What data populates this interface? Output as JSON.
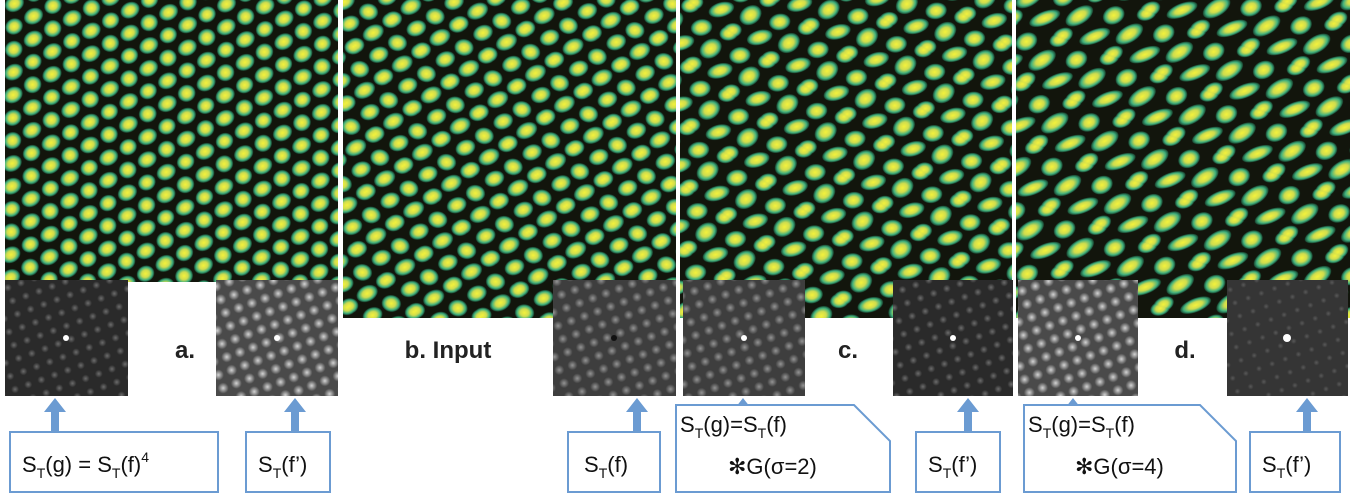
{
  "panels": [
    {
      "label": "a."
    },
    {
      "label": "b. Input"
    },
    {
      "label": "c."
    },
    {
      "label": "d."
    }
  ],
  "captions": [
    {
      "lines": [
        [
          {
            "text": "S"
          },
          {
            "sub": "T"
          },
          {
            "text": "(g) = S"
          },
          {
            "sub": "T"
          },
          {
            "text": "(f)"
          },
          {
            "sup": "4"
          }
        ]
      ]
    },
    {
      "lines": [
        [
          {
            "text": "S"
          },
          {
            "sub": "T"
          },
          {
            "text": "(f’)"
          }
        ]
      ]
    },
    {
      "lines": [
        [
          {
            "text": "S"
          },
          {
            "sub": "T"
          },
          {
            "text": "(f)"
          }
        ]
      ]
    },
    {
      "lines": [
        [
          {
            "text": "S"
          },
          {
            "sub": "T"
          },
          {
            "text": "(g)=S"
          },
          {
            "sub": "T"
          },
          {
            "text": "(f)"
          }
        ],
        [
          {
            "text": "✻G(σ=2)"
          }
        ]
      ]
    },
    {
      "lines": [
        [
          {
            "text": "S"
          },
          {
            "sub": "T"
          },
          {
            "text": "(f’)"
          }
        ]
      ]
    },
    {
      "lines": [
        [
          {
            "text": "S"
          },
          {
            "sub": "T"
          },
          {
            "text": "(g)=S"
          },
          {
            "sub": "T"
          },
          {
            "text": "(f)"
          }
        ],
        [
          {
            "text": "✻G(σ=4)"
          }
        ]
      ]
    },
    {
      "lines": [
        [
          {
            "text": "S"
          },
          {
            "sub": "T"
          },
          {
            "text": "(f’)"
          }
        ]
      ]
    }
  ]
}
